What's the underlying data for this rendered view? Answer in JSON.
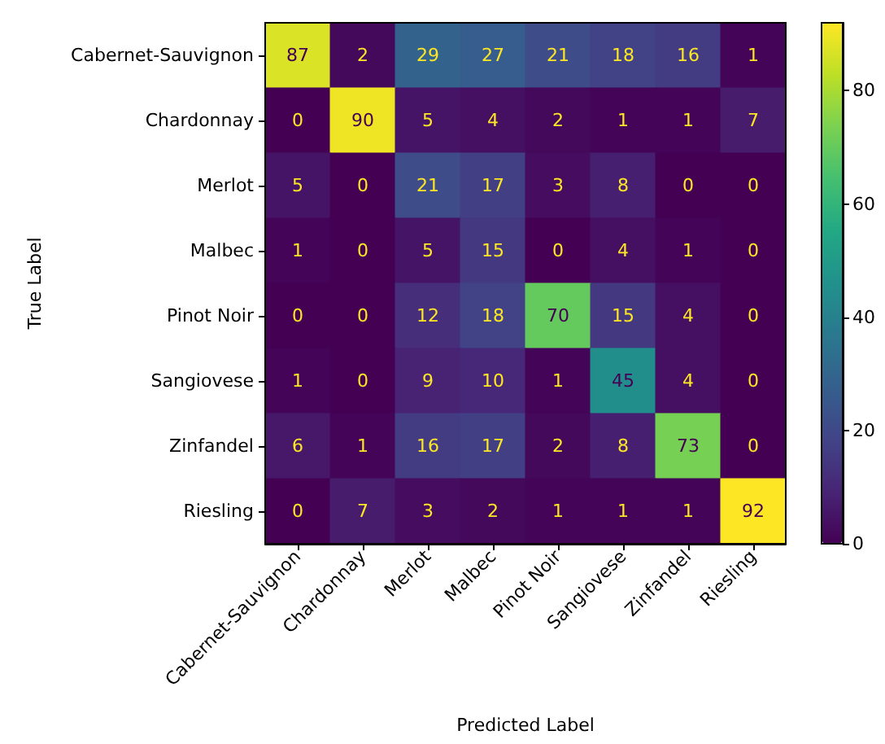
{
  "chart_data": {
    "type": "heatmap",
    "xlabel": "Predicted Label",
    "ylabel": "True Label",
    "categories": [
      "Cabernet-Sauvignon",
      "Chardonnay",
      "Merlot",
      "Malbec",
      "Pinot Noir",
      "Sangiovese",
      "Zinfandel",
      "Riesling"
    ],
    "y_categories": [
      "Cabernet-Sauvignon",
      "Chardonnay",
      "Merlot",
      "Malbec",
      "Pinot Noir",
      "Sangiovese",
      "Zinfandel",
      "Riesling"
    ],
    "cells": [
      [
        87,
        2,
        29,
        27,
        21,
        18,
        16,
        1
      ],
      [
        0,
        90,
        5,
        4,
        2,
        1,
        1,
        7
      ],
      [
        5,
        0,
        21,
        17,
        3,
        8,
        0,
        0
      ],
      [
        1,
        0,
        5,
        15,
        0,
        4,
        1,
        0
      ],
      [
        0,
        0,
        12,
        18,
        70,
        15,
        4,
        0
      ],
      [
        1,
        0,
        9,
        10,
        1,
        45,
        4,
        0
      ],
      [
        6,
        1,
        16,
        17,
        2,
        8,
        73,
        0
      ],
      [
        0,
        7,
        3,
        2,
        1,
        1,
        1,
        92
      ]
    ],
    "clim": [
      0,
      92
    ],
    "cticks": [
      0,
      20,
      40,
      60,
      80
    ],
    "data_labels": true
  }
}
